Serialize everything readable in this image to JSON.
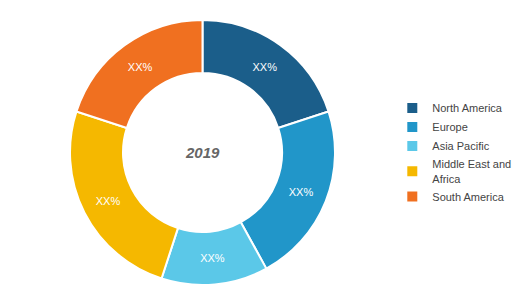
{
  "chart_data": {
    "type": "pie",
    "title": "2019",
    "categories": [
      "North America",
      "Europe",
      "Asia Pacific",
      "Middle East and\nAfrica",
      "South America"
    ],
    "values": [
      20,
      22,
      13,
      25,
      20
    ],
    "value_labels": [
      "XX%",
      "XX%",
      "XX%",
      "XX%",
      "XX%"
    ],
    "colors": [
      "#1b5e8a",
      "#2196c9",
      "#5bc8e8",
      "#f5b800",
      "#f07020"
    ],
    "legend": "right"
  }
}
